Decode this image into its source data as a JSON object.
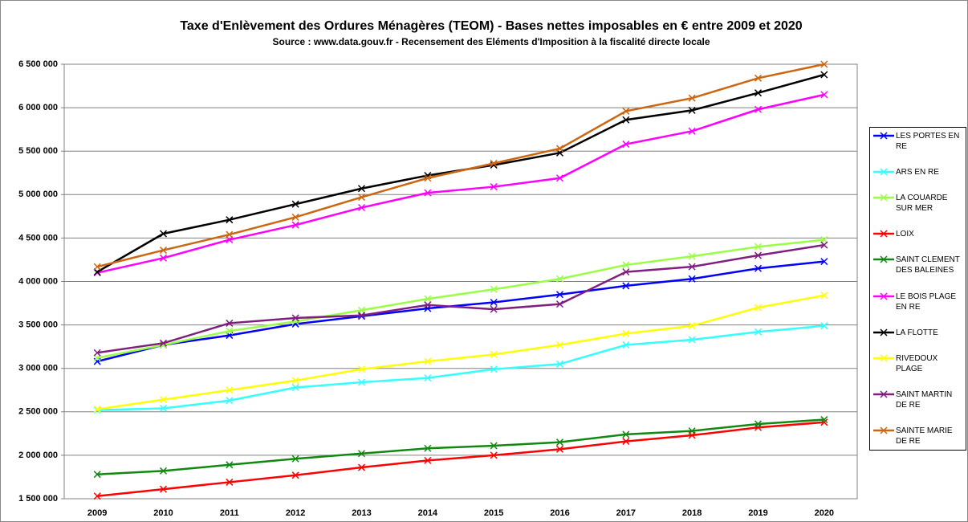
{
  "chart_data": {
    "type": "line",
    "title": "Taxe d'Enlèvement des Ordures Ménagères (TEOM) - Bases nettes imposables en € entre 2009 et 2020",
    "subtitle": "Source : www.data.gouv.fr - Recensement des Eléments d'Imposition à la fiscalité directe locale",
    "categories": [
      "2009",
      "2010",
      "2011",
      "2012",
      "2013",
      "2014",
      "2015",
      "2016",
      "2017",
      "2018",
      "2019",
      "2020"
    ],
    "ylim": [
      1500000,
      6500000
    ],
    "yticks": [
      {
        "value": 1500000,
        "label": "1 500 000"
      },
      {
        "value": 2000000,
        "label": "2 000 000"
      },
      {
        "value": 2500000,
        "label": "2 500 000"
      },
      {
        "value": 3000000,
        "label": "3 000 000"
      },
      {
        "value": 3500000,
        "label": "3 500 000"
      },
      {
        "value": 4000000,
        "label": "4 000 000"
      },
      {
        "value": 4500000,
        "label": "4 500 000"
      },
      {
        "value": 5000000,
        "label": "5 000 000"
      },
      {
        "value": 5500000,
        "label": "5 500 000"
      },
      {
        "value": 6000000,
        "label": "6 000 000"
      },
      {
        "value": 6500000,
        "label": "6 500 000"
      }
    ],
    "grid": true,
    "legend": "right",
    "series": [
      {
        "name": "LES PORTES EN RE",
        "color": "#0000ff",
        "values": [
          3080000,
          3270000,
          3380000,
          3510000,
          3600000,
          3690000,
          3760000,
          3850000,
          3950000,
          4030000,
          4150000,
          4230000
        ]
      },
      {
        "name": "ARS EN RE",
        "color": "#33ffff",
        "values": [
          2520000,
          2540000,
          2630000,
          2780000,
          2840000,
          2890000,
          2990000,
          3050000,
          3270000,
          3330000,
          3420000,
          3490000
        ]
      },
      {
        "name": "LA COUARDE SUR MER",
        "color": "#99ff44",
        "values": [
          3120000,
          3270000,
          3430000,
          3540000,
          3670000,
          3800000,
          3910000,
          4030000,
          4190000,
          4290000,
          4400000,
          4480000
        ]
      },
      {
        "name": "LOIX",
        "color": "#ff0000",
        "values": [
          1530000,
          1610000,
          1690000,
          1770000,
          1860000,
          1940000,
          2000000,
          2070000,
          2160000,
          2230000,
          2320000,
          2380000
        ]
      },
      {
        "name": "SAINT CLEMENT DES BALEINES",
        "color": "#118811",
        "values": [
          1780000,
          1820000,
          1890000,
          1960000,
          2020000,
          2080000,
          2110000,
          2150000,
          2240000,
          2280000,
          2360000,
          2410000
        ]
      },
      {
        "name": "LE BOIS PLAGE EN RE",
        "color": "#ff00ff",
        "values": [
          4100000,
          4270000,
          4480000,
          4650000,
          4850000,
          5020000,
          5090000,
          5190000,
          5580000,
          5730000,
          5980000,
          6150000
        ]
      },
      {
        "name": "LA FLOTTE",
        "color": "#000000",
        "values": [
          4110000,
          4550000,
          4710000,
          4890000,
          5070000,
          5220000,
          5340000,
          5480000,
          5860000,
          5970000,
          6170000,
          6380000
        ]
      },
      {
        "name": "RIVEDOUX PLAGE",
        "color": "#ffff00",
        "values": [
          2530000,
          2640000,
          2750000,
          2860000,
          2990000,
          3080000,
          3160000,
          3270000,
          3400000,
          3490000,
          3700000,
          3840000
        ]
      },
      {
        "name": "SAINT MARTIN DE RE",
        "color": "#7f1f7f",
        "values": [
          3180000,
          3290000,
          3520000,
          3580000,
          3610000,
          3730000,
          3680000,
          3740000,
          4110000,
          4170000,
          4300000,
          4420000
        ]
      },
      {
        "name": "SAINTE MARIE DE RE",
        "color": "#cc6611",
        "values": [
          4170000,
          4360000,
          4540000,
          4740000,
          4970000,
          5190000,
          5360000,
          5530000,
          5960000,
          6110000,
          6340000,
          6500000
        ]
      }
    ]
  }
}
